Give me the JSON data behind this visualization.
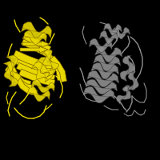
{
  "background_color": "#000000",
  "fig_width": 2.0,
  "fig_height": 2.0,
  "dpi": 100,
  "yellow_color": "#e8d800",
  "gray_color": "#909090",
  "yellow_dark": "#705800",
  "gray_dark": "#303030",
  "yellow_mid": "#c4b800",
  "gray_mid": "#606060"
}
